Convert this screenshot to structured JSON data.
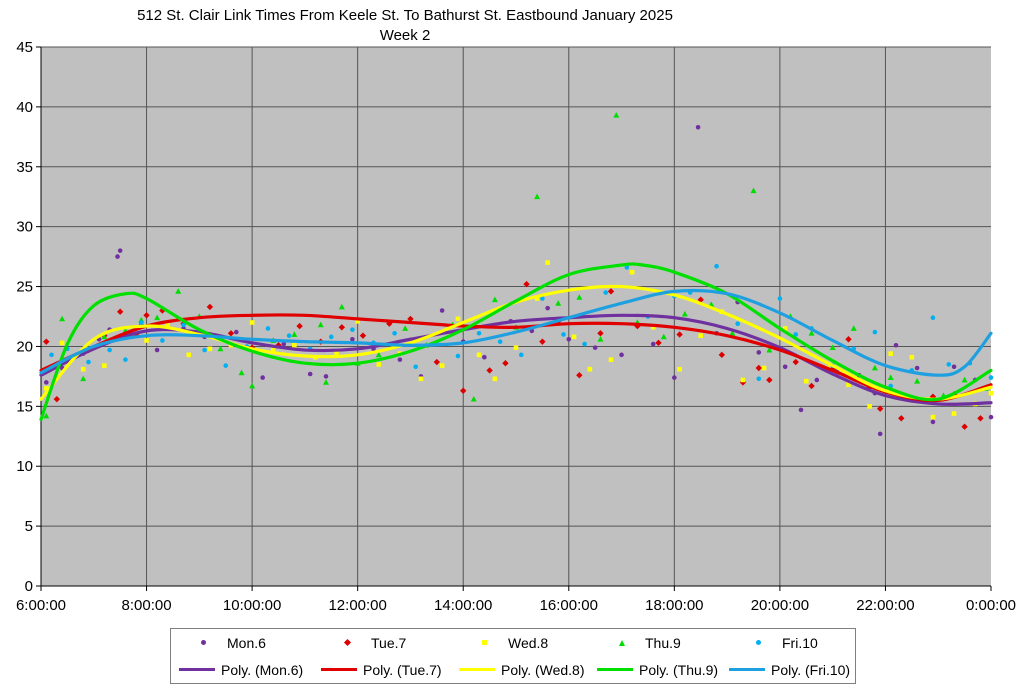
{
  "title": {
    "line1": "512 St. Clair Link Times From Keele St. To Bathurst St. Eastbound January 2025",
    "line2": "Week 2"
  },
  "chart_data": {
    "type": "scatter",
    "xlim": [
      6,
      24
    ],
    "ylim": [
      0,
      45
    ],
    "x_tick_labels": [
      "6:00:00",
      "8:00:00",
      "10:00:00",
      "12:00:00",
      "14:00:00",
      "16:00:00",
      "18:00:00",
      "20:00:00",
      "22:00:00",
      "0:00:00"
    ],
    "x_tick_values": [
      6,
      8,
      10,
      12,
      14,
      16,
      18,
      20,
      22,
      24
    ],
    "y_tick_labels": [
      "0",
      "5",
      "10",
      "15",
      "20",
      "25",
      "30",
      "35",
      "40",
      "45"
    ],
    "y_tick_values": [
      0,
      5,
      10,
      15,
      20,
      25,
      30,
      35,
      40,
      45
    ],
    "grid": true,
    "background": "#c0c0c0",
    "legend_position": "bottom",
    "series": [
      {
        "name": "Mon.6",
        "marker": "circle",
        "color": "#7030a0",
        "points": [
          [
            6.1,
            17.0
          ],
          [
            6.4,
            18.2
          ],
          [
            6.8,
            19.4
          ],
          [
            7.1,
            20.6
          ],
          [
            7.3,
            21.4
          ],
          [
            7.45,
            27.5
          ],
          [
            7.5,
            28.0
          ],
          [
            7.9,
            21.8
          ],
          [
            8.2,
            19.7
          ],
          [
            8.7,
            21.5
          ],
          [
            9.1,
            20.8
          ],
          [
            9.7,
            21.2
          ],
          [
            10.2,
            17.4
          ],
          [
            10.6,
            20.2
          ],
          [
            11.1,
            17.7
          ],
          [
            11.4,
            17.5
          ],
          [
            11.9,
            20.6
          ],
          [
            12.3,
            19.8
          ],
          [
            12.8,
            18.9
          ],
          [
            13.2,
            17.5
          ],
          [
            13.6,
            23.0
          ],
          [
            14.0,
            20.4
          ],
          [
            14.4,
            19.1
          ],
          [
            14.9,
            22.1
          ],
          [
            15.3,
            21.3
          ],
          [
            15.6,
            23.2
          ],
          [
            16.0,
            20.6
          ],
          [
            16.5,
            19.9
          ],
          [
            17.0,
            19.3
          ],
          [
            17.6,
            20.2
          ],
          [
            18.0,
            17.4
          ],
          [
            18.45,
            38.3
          ],
          [
            18.8,
            21.1
          ],
          [
            19.2,
            23.7
          ],
          [
            19.6,
            19.5
          ],
          [
            20.1,
            18.3
          ],
          [
            20.4,
            14.7
          ],
          [
            20.7,
            17.2
          ],
          [
            21.1,
            18.1
          ],
          [
            21.5,
            17.6
          ],
          [
            21.8,
            16.1
          ],
          [
            21.9,
            12.7
          ],
          [
            22.2,
            20.1
          ],
          [
            22.6,
            18.2
          ],
          [
            22.9,
            13.7
          ],
          [
            23.3,
            18.3
          ],
          [
            23.7,
            17.2
          ],
          [
            24.0,
            14.1
          ]
        ]
      },
      {
        "name": "Tue.7",
        "marker": "diamond",
        "color": "#dd0000",
        "points": [
          [
            6.1,
            20.4
          ],
          [
            6.3,
            15.6
          ],
          [
            6.6,
            19.1
          ],
          [
            6.9,
            19.7
          ],
          [
            7.2,
            20.9
          ],
          [
            7.5,
            22.9
          ],
          [
            7.8,
            21.0
          ],
          [
            8.0,
            22.6
          ],
          [
            8.3,
            23.0
          ],
          [
            8.7,
            21.9
          ],
          [
            9.2,
            23.3
          ],
          [
            9.6,
            21.1
          ],
          [
            10.0,
            19.9
          ],
          [
            10.5,
            20.1
          ],
          [
            10.9,
            21.7
          ],
          [
            11.3,
            20.4
          ],
          [
            11.7,
            21.6
          ],
          [
            12.1,
            20.9
          ],
          [
            12.6,
            21.9
          ],
          [
            13.0,
            22.3
          ],
          [
            13.5,
            18.7
          ],
          [
            14.0,
            16.3
          ],
          [
            14.5,
            18.0
          ],
          [
            14.8,
            18.6
          ],
          [
            15.2,
            25.2
          ],
          [
            15.5,
            20.4
          ],
          [
            15.8,
            22.1
          ],
          [
            16.2,
            17.6
          ],
          [
            16.6,
            21.1
          ],
          [
            16.8,
            24.6
          ],
          [
            17.3,
            21.7
          ],
          [
            17.7,
            20.3
          ],
          [
            18.1,
            21.0
          ],
          [
            18.5,
            23.9
          ],
          [
            18.9,
            19.3
          ],
          [
            19.3,
            17.0
          ],
          [
            19.6,
            18.2
          ],
          [
            19.8,
            17.2
          ],
          [
            20.3,
            18.7
          ],
          [
            20.6,
            16.7
          ],
          [
            21.0,
            18.1
          ],
          [
            21.3,
            20.6
          ],
          [
            21.7,
            16.6
          ],
          [
            21.9,
            14.8
          ],
          [
            22.3,
            14.0
          ],
          [
            22.9,
            15.8
          ],
          [
            23.3,
            16.0
          ],
          [
            23.5,
            13.3
          ],
          [
            23.8,
            14.0
          ]
        ]
      },
      {
        "name": "Wed.8",
        "marker": "square",
        "color": "#ffff00",
        "points": [
          [
            6.1,
            16.5
          ],
          [
            6.4,
            20.3
          ],
          [
            6.8,
            18.1
          ],
          [
            7.2,
            18.4
          ],
          [
            7.6,
            21.0
          ],
          [
            8.0,
            20.5
          ],
          [
            8.4,
            21.8
          ],
          [
            8.8,
            19.3
          ],
          [
            9.2,
            19.8
          ],
          [
            9.6,
            20.1
          ],
          [
            10.0,
            22.0
          ],
          [
            10.4,
            19.8
          ],
          [
            10.8,
            20.1
          ],
          [
            11.2,
            19.1
          ],
          [
            11.6,
            19.4
          ],
          [
            12.0,
            22.1
          ],
          [
            12.4,
            18.5
          ],
          [
            12.8,
            19.4
          ],
          [
            13.2,
            17.3
          ],
          [
            13.6,
            18.4
          ],
          [
            13.9,
            22.3
          ],
          [
            14.3,
            19.3
          ],
          [
            14.6,
            17.3
          ],
          [
            15.0,
            19.9
          ],
          [
            15.4,
            24.0
          ],
          [
            15.6,
            27.0
          ],
          [
            16.1,
            20.8
          ],
          [
            16.4,
            18.1
          ],
          [
            16.8,
            18.9
          ],
          [
            17.2,
            26.2
          ],
          [
            17.6,
            21.6
          ],
          [
            18.1,
            18.1
          ],
          [
            18.5,
            20.9
          ],
          [
            18.9,
            22.9
          ],
          [
            19.3,
            17.2
          ],
          [
            19.7,
            18.2
          ],
          [
            20.1,
            21.5
          ],
          [
            20.5,
            17.1
          ],
          [
            20.9,
            18.2
          ],
          [
            21.3,
            16.8
          ],
          [
            21.7,
            15.0
          ],
          [
            22.1,
            19.4
          ],
          [
            22.5,
            19.1
          ],
          [
            22.9,
            14.1
          ],
          [
            23.3,
            14.4
          ],
          [
            23.7,
            15.2
          ],
          [
            24.0,
            16.1
          ]
        ]
      },
      {
        "name": "Thu.9",
        "marker": "triangle",
        "color": "#00dd00",
        "points": [
          [
            6.1,
            14.2
          ],
          [
            6.4,
            22.3
          ],
          [
            6.8,
            17.3
          ],
          [
            7.2,
            20.8
          ],
          [
            7.6,
            21.3
          ],
          [
            7.9,
            22.2
          ],
          [
            8.2,
            22.4
          ],
          [
            8.6,
            24.6
          ],
          [
            9.0,
            22.5
          ],
          [
            9.4,
            19.8
          ],
          [
            9.8,
            17.8
          ],
          [
            10.0,
            16.7
          ],
          [
            10.4,
            20.5
          ],
          [
            10.8,
            21.0
          ],
          [
            11.3,
            21.8
          ],
          [
            11.4,
            17.0
          ],
          [
            11.7,
            23.3
          ],
          [
            12.0,
            18.6
          ],
          [
            12.4,
            19.3
          ],
          [
            12.9,
            21.5
          ],
          [
            13.3,
            20.1
          ],
          [
            13.8,
            21.8
          ],
          [
            14.2,
            15.6
          ],
          [
            14.6,
            23.9
          ],
          [
            15.0,
            21.6
          ],
          [
            15.4,
            32.5
          ],
          [
            15.8,
            23.6
          ],
          [
            16.2,
            24.1
          ],
          [
            16.6,
            20.6
          ],
          [
            16.9,
            39.3
          ],
          [
            17.3,
            22.0
          ],
          [
            17.8,
            20.8
          ],
          [
            18.2,
            22.7
          ],
          [
            18.7,
            23.5
          ],
          [
            19.1,
            21.1
          ],
          [
            19.5,
            33.0
          ],
          [
            19.8,
            19.7
          ],
          [
            20.2,
            22.5
          ],
          [
            20.6,
            21.1
          ],
          [
            21.0,
            19.9
          ],
          [
            21.4,
            21.5
          ],
          [
            21.8,
            18.2
          ],
          [
            22.1,
            17.4
          ],
          [
            22.6,
            17.1
          ],
          [
            23.1,
            15.9
          ],
          [
            23.5,
            17.2
          ],
          [
            23.9,
            16.5
          ]
        ]
      },
      {
        "name": "Fri.10",
        "marker": "circle",
        "color": "#00b0f0",
        "points": [
          [
            6.2,
            19.3
          ],
          [
            6.5,
            19.8
          ],
          [
            6.9,
            18.7
          ],
          [
            7.3,
            19.7
          ],
          [
            7.6,
            18.9
          ],
          [
            7.9,
            22.0
          ],
          [
            8.3,
            20.5
          ],
          [
            8.7,
            21.8
          ],
          [
            9.1,
            19.7
          ],
          [
            9.5,
            18.4
          ],
          [
            9.9,
            20.0
          ],
          [
            10.3,
            21.5
          ],
          [
            10.7,
            20.9
          ],
          [
            11.1,
            19.8
          ],
          [
            11.5,
            20.8
          ],
          [
            11.9,
            21.4
          ],
          [
            12.3,
            20.3
          ],
          [
            12.7,
            21.1
          ],
          [
            13.1,
            18.3
          ],
          [
            13.5,
            20.3
          ],
          [
            13.9,
            19.2
          ],
          [
            14.3,
            21.1
          ],
          [
            14.7,
            20.4
          ],
          [
            15.1,
            19.3
          ],
          [
            15.5,
            24.0
          ],
          [
            15.9,
            21.0
          ],
          [
            16.3,
            20.2
          ],
          [
            16.7,
            24.5
          ],
          [
            17.1,
            26.6
          ],
          [
            17.5,
            22.5
          ],
          [
            18.0,
            24.2
          ],
          [
            18.3,
            24.5
          ],
          [
            18.8,
            26.7
          ],
          [
            19.2,
            21.9
          ],
          [
            19.6,
            17.3
          ],
          [
            20.0,
            24.0
          ],
          [
            20.3,
            21.0
          ],
          [
            20.6,
            21.5
          ],
          [
            21.0,
            18.4
          ],
          [
            21.4,
            19.8
          ],
          [
            21.8,
            21.2
          ],
          [
            22.1,
            16.7
          ],
          [
            22.5,
            18.0
          ],
          [
            22.9,
            22.4
          ],
          [
            23.2,
            18.5
          ],
          [
            23.6,
            18.6
          ],
          [
            24.0,
            17.4
          ]
        ]
      }
    ],
    "trendlines": [
      {
        "name": "Poly. (Mon.6)",
        "color": "#7030a0",
        "x": [
          6,
          7,
          8,
          9,
          10,
          11,
          12,
          13,
          14,
          15,
          16,
          17,
          18,
          19,
          20,
          21,
          22,
          23,
          24
        ],
        "y": [
          17.6,
          19.8,
          21.3,
          21.2,
          20.3,
          19.7,
          19.8,
          20.6,
          21.4,
          22.1,
          22.4,
          22.6,
          22.4,
          21.5,
          19.9,
          17.7,
          15.9,
          15.2,
          15.3
        ]
      },
      {
        "name": "Poly. (Tue.7)",
        "color": "#e00000",
        "x": [
          6,
          7,
          8,
          9,
          10,
          11,
          12,
          13,
          14,
          15,
          16,
          17,
          18,
          19,
          20,
          21,
          22,
          23,
          24
        ],
        "y": [
          18.0,
          20.0,
          21.7,
          22.4,
          22.6,
          22.6,
          22.3,
          22.0,
          21.7,
          21.6,
          21.9,
          21.9,
          21.6,
          20.9,
          19.7,
          18.0,
          16.2,
          15.5,
          16.8
        ]
      },
      {
        "name": "Poly. (Wed.8)",
        "color": "#ffff00",
        "x": [
          6,
          7,
          8,
          9,
          10,
          11,
          12,
          13,
          14,
          15,
          16,
          17,
          18,
          19,
          20,
          21,
          22,
          23,
          24
        ],
        "y": [
          15.6,
          20.6,
          21.7,
          21.0,
          19.8,
          19.2,
          19.3,
          20.3,
          22.0,
          23.7,
          24.7,
          25.0,
          24.3,
          22.7,
          20.7,
          18.4,
          16.3,
          15.6,
          16.6
        ]
      },
      {
        "name": "Poly. (Thu.9)",
        "color": "#00e000",
        "x": [
          6,
          6.5,
          7,
          7.6,
          8,
          9,
          10,
          11,
          12,
          13,
          14,
          15,
          16,
          17,
          17.4,
          18,
          19,
          20,
          21,
          22,
          23,
          24
        ],
        "y": [
          13.9,
          20.2,
          23.4,
          24.4,
          24.0,
          21.4,
          19.6,
          18.6,
          18.6,
          19.6,
          21.4,
          23.8,
          26.0,
          26.8,
          26.8,
          26.2,
          24.4,
          21.5,
          18.8,
          16.6,
          15.6,
          18.0
        ]
      },
      {
        "name": "Poly. (Fri.10)",
        "color": "#1ea0e0",
        "x": [
          6,
          7,
          8,
          9,
          10,
          11,
          12,
          13,
          14,
          15,
          16,
          17,
          18,
          19,
          20,
          21,
          22,
          23,
          23.5,
          24
        ],
        "y": [
          17.8,
          20.0,
          20.9,
          20.9,
          20.6,
          20.4,
          20.3,
          20.1,
          20.3,
          21.2,
          22.4,
          23.6,
          24.6,
          24.4,
          22.8,
          20.5,
          18.4,
          17.6,
          18.3,
          21.1
        ]
      }
    ]
  }
}
